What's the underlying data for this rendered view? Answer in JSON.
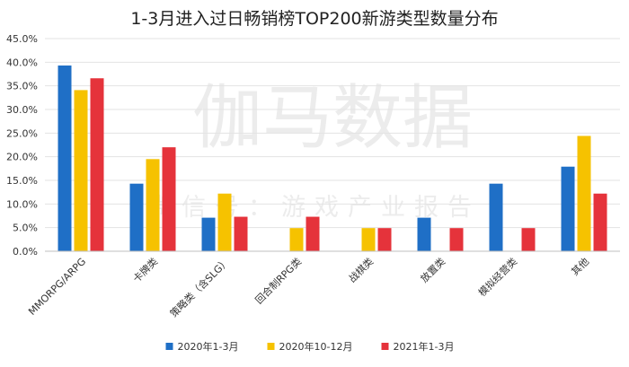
{
  "watermark": {
    "main": "伽马数据",
    "sub": "微信号：游戏产业报告"
  },
  "chart_data": {
    "type": "bar",
    "title": "1-3月进入过日畅销榜TOP200新游类型数量分布",
    "categories": [
      "MMORPG/ARPG",
      "卡牌类",
      "策略类（含SLG）",
      "回合制RPG类",
      "战棋类",
      "放置类",
      "模拟经营类",
      "其他"
    ],
    "series": [
      {
        "name": "2020年1-3月",
        "color": "#1f6fc6",
        "values": [
          39.3,
          14.3,
          7.1,
          0,
          0,
          7.1,
          14.3,
          17.9
        ]
      },
      {
        "name": "2020年10-12月",
        "color": "#f6c200",
        "values": [
          34.1,
          19.5,
          12.2,
          4.9,
          4.9,
          0,
          0,
          24.4
        ]
      },
      {
        "name": "2021年1-3月",
        "color": "#e5333b",
        "values": [
          36.6,
          22.0,
          7.3,
          7.3,
          4.9,
          4.9,
          4.9,
          12.2
        ]
      }
    ],
    "ylim": [
      0,
      45
    ],
    "yticks": [
      "0.0%",
      "5.0%",
      "10.0%",
      "15.0%",
      "20.0%",
      "25.0%",
      "30.0%",
      "35.0%",
      "40.0%",
      "45.0%"
    ],
    "grid": true,
    "legend": "bottom"
  }
}
